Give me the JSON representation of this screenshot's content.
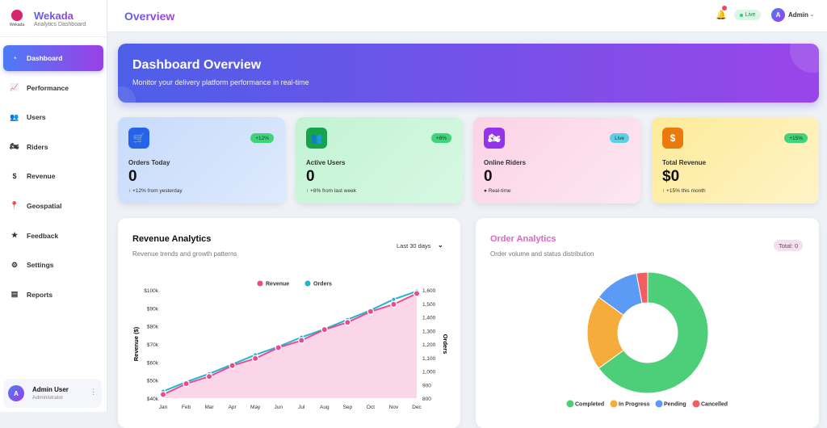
{
  "brand": {
    "name": "Wekada",
    "subtitle": "Analytics Dashboard",
    "logo_text": "Wekada"
  },
  "sidebar": {
    "items": [
      {
        "label": "Dashboard",
        "icon": "gauge-icon",
        "glyph": "◔",
        "active": true
      },
      {
        "label": "Performance",
        "icon": "chart-line-icon",
        "glyph": "📈"
      },
      {
        "label": "Users",
        "icon": "users-icon",
        "glyph": "👥"
      },
      {
        "label": "Riders",
        "icon": "motorcycle-icon",
        "glyph": "🏍"
      },
      {
        "label": "Revenue",
        "icon": "dollar-icon",
        "glyph": "$"
      },
      {
        "label": "Geospatial",
        "icon": "map-pin-icon",
        "glyph": "📍"
      },
      {
        "label": "Feedback",
        "icon": "star-icon",
        "glyph": "★"
      },
      {
        "label": "Settings",
        "icon": "gear-icon",
        "glyph": "⚙"
      },
      {
        "label": "Reports",
        "icon": "file-icon",
        "glyph": "▤"
      }
    ],
    "user": {
      "initial": "A",
      "name": "Admin User",
      "role": "Administrator"
    }
  },
  "header": {
    "title": "Overview",
    "live": "Live",
    "avatar_initial": "A",
    "user": "Admin"
  },
  "banner": {
    "title": "Dashboard Overview",
    "subtitle": "Monitor your delivery platform performance in real-time"
  },
  "cards": [
    {
      "label": "Orders Today",
      "value": "0",
      "badge": "+12%",
      "sub": "↑ +12% from yesterday",
      "glyph": "🛒",
      "icon": "cart-icon",
      "bg": "linear-gradient(135deg,#c7dbfb,#dde9fd)",
      "ic": "#2563eb",
      "badgebg": "#3fd37a"
    },
    {
      "label": "Active Users",
      "value": "0",
      "badge": "+8%",
      "sub": "↑ +8% from last week",
      "glyph": "👥",
      "icon": "users-icon",
      "bg": "linear-gradient(135deg,#c2f3d3,#d7f8e3)",
      "ic": "#16a34a",
      "badgebg": "#3fd37a"
    },
    {
      "label": "Online Riders",
      "value": "0",
      "badge": "Live",
      "sub": "● Real-time",
      "glyph": "🏍",
      "icon": "motorcycle-icon",
      "bg": "linear-gradient(135deg,#fbd3e6,#fde6f0)",
      "ic": "#9333ea",
      "badgebg": "#5bd0e6"
    },
    {
      "label": "Total Revenue",
      "value": "$0",
      "badge": "+15%",
      "sub": "↑ +15% this month",
      "glyph": "$",
      "icon": "dollar-icon",
      "bg": "linear-gradient(135deg,#fdeb98,#fef3c7)",
      "ic": "#ea7a0c",
      "badgebg": "#3fd37a"
    }
  ],
  "revenue_panel": {
    "title": "Revenue Analytics",
    "subtitle": "Revenue trends and growth patterns",
    "range": "Last 30 days"
  },
  "order_panel": {
    "title": "Order Analytics",
    "subtitle": "Order volume and status distribution",
    "total": "Total: 0"
  },
  "chart_data": [
    {
      "type": "line",
      "categories": [
        "Jan",
        "Feb",
        "Mar",
        "Apr",
        "May",
        "Jun",
        "Jul",
        "Aug",
        "Sep",
        "Oct",
        "Nov",
        "Dec"
      ],
      "series": [
        {
          "name": "Revenue",
          "axis": "left",
          "color": "#e84c8f",
          "values": [
            42000,
            48000,
            52000,
            58000,
            62000,
            68000,
            72000,
            78000,
            82000,
            88000,
            92000,
            98000
          ]
        },
        {
          "name": "Orders",
          "axis": "right",
          "color": "#1fb5d2",
          "values": [
            850,
            920,
            980,
            1050,
            1120,
            1180,
            1250,
            1310,
            1380,
            1450,
            1530,
            1590
          ]
        }
      ],
      "ylabel": "Revenue ($)",
      "y2label": "Orders",
      "ylim": [
        40000,
        100000
      ],
      "y2lim": [
        800,
        1600
      ],
      "yticks": [
        "$40k",
        "$50k",
        "$60k",
        "$70k",
        "$80k",
        "$90k",
        "$100k"
      ],
      "y2ticks": [
        "800",
        "900",
        "1,000",
        "1,100",
        "1,200",
        "1,300",
        "1,400",
        "1,500",
        "1,600"
      ],
      "legend": "top"
    },
    {
      "type": "pie",
      "donut": true,
      "labels": [
        "Completed",
        "In Progress",
        "Pending",
        "Cancelled"
      ],
      "values": [
        65,
        20,
        12,
        3
      ],
      "colors": [
        "#4ccf78",
        "#f5ac3b",
        "#5b9af5",
        "#ef5f63"
      ],
      "legend": "bottom"
    }
  ]
}
